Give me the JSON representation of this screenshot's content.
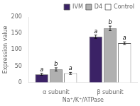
{
  "chart_data": {
    "type": "bar",
    "xlabel": "Na⁺/K⁺/ATPase",
    "ylabel": "Expression value",
    "categories": [
      "α subunit",
      "β subunit"
    ],
    "series": [
      {
        "name": "IVM",
        "color": "#3b2266",
        "values": [
          25,
          140
        ],
        "errors": [
          3,
          5
        ],
        "letters": [
          "a",
          "a"
        ]
      },
      {
        "name": "D4",
        "color": "#b0b0b0",
        "values": [
          40,
          165
        ],
        "errors": [
          5,
          7
        ],
        "letters": [
          "b",
          "b"
        ]
      },
      {
        "name": "Control",
        "color": "#ffffff",
        "values": [
          28,
          120
        ],
        "errors": [
          3,
          4
        ],
        "letters": [
          "a",
          "a"
        ]
      }
    ],
    "ylim": [
      0,
      200
    ],
    "yticks": [
      0,
      50,
      100,
      150,
      200
    ],
    "grid": false,
    "legend": "upper right"
  }
}
